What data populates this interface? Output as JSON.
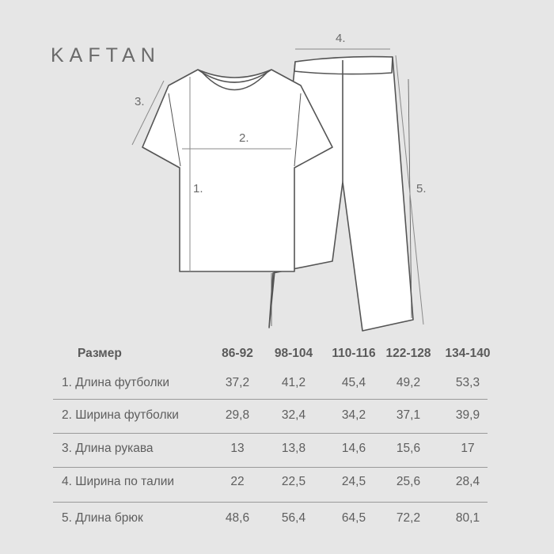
{
  "brand": "KAFTAN",
  "diagram": {
    "labels": [
      "1.",
      "2.",
      "3.",
      "4.",
      "5."
    ]
  },
  "table": {
    "header": "Размер",
    "sizes": [
      "86-92",
      "98-104",
      "110-116",
      "122-128",
      "134-140"
    ],
    "rows": [
      {
        "label": "1.  Длина футболки",
        "values": [
          "37,2",
          "41,2",
          "45,4",
          "49,2",
          "53,3"
        ]
      },
      {
        "label": "2. Ширина футболки",
        "values": [
          "29,8",
          "32,4",
          "34,2",
          "37,1",
          "39,9"
        ]
      },
      {
        "label": "3.  Длина рукава",
        "values": [
          "13",
          "13,8",
          "14,6",
          "15,6",
          "17"
        ]
      },
      {
        "label": "4. Ширина по талии",
        "values": [
          "22",
          "22,5",
          "24,5",
          "25,6",
          "28,4"
        ]
      },
      {
        "label": "5. Длина брюк",
        "values": [
          "48,6",
          "56,4",
          "64,5",
          "72,2",
          "80,1"
        ]
      }
    ]
  }
}
